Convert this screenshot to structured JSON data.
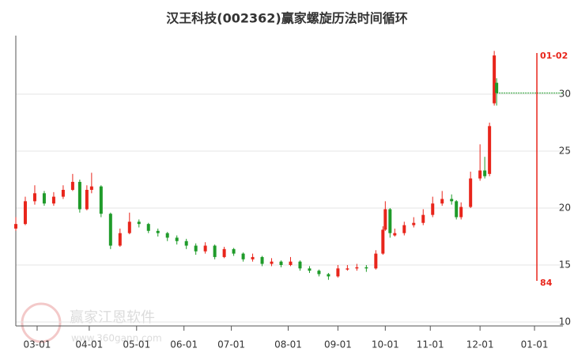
{
  "chart_data": {
    "type": "candlestick",
    "title": "汉王科技(002362)赢家螺旋历法时间循环",
    "watermark": "赢家江恩软件",
    "watermark_url": "www.360gann.com",
    "up_color": "#e8251b",
    "down_color": "#1f9b2a",
    "grid": true,
    "xlim": [
      0,
      231
    ],
    "ylim": [
      9.65,
      34.45
    ],
    "yticks": [
      10,
      15,
      20,
      25,
      30
    ],
    "xticks": [
      {
        "value": 9,
        "label": "03-01"
      },
      {
        "value": 31,
        "label": "04-01"
      },
      {
        "value": 51,
        "label": "05-01"
      },
      {
        "value": 71,
        "label": "06-01"
      },
      {
        "value": 91,
        "label": "07-01"
      },
      {
        "value": 115,
        "label": "08-01"
      },
      {
        "value": 136,
        "label": "09-01"
      },
      {
        "value": 156,
        "label": "10-01"
      },
      {
        "value": 175,
        "label": "11-01"
      },
      {
        "value": 196,
        "label": "12-01"
      },
      {
        "value": 219,
        "label": "01-01"
      }
    ],
    "x": [
      0,
      4,
      8,
      12,
      16,
      20,
      24,
      27,
      30,
      32,
      36,
      40,
      44,
      48,
      52,
      56,
      60,
      64,
      68,
      72,
      76,
      80,
      84,
      88,
      92,
      96,
      100,
      104,
      108,
      112,
      116,
      120,
      124,
      128,
      132,
      136,
      140,
      144,
      148,
      152,
      155,
      156,
      158,
      160,
      164,
      168,
      172,
      176,
      180,
      184,
      186,
      188,
      192,
      196,
      198,
      200,
      202,
      203
    ],
    "open": [
      18.2,
      18.6,
      20.6,
      21.3,
      20.4,
      21.0,
      21.6,
      22.3,
      19.9,
      21.6,
      21.9,
      19.5,
      16.7,
      17.8,
      18.8,
      18.6,
      18.0,
      17.8,
      17.4,
      17.1,
      16.7,
      16.2,
      16.7,
      15.7,
      16.4,
      16.0,
      15.5,
      15.7,
      15.1,
      15.3,
      15.0,
      15.3,
      14.7,
      14.5,
      14.2,
      14.0,
      14.6,
      14.7,
      14.8,
      14.7,
      16.0,
      18.1,
      19.9,
      17.6,
      17.8,
      18.5,
      18.7,
      19.4,
      20.4,
      20.8,
      20.6,
      19.2,
      20.1,
      22.6,
      23.3,
      23.0,
      29.2,
      31.0
    ],
    "close": [
      18.6,
      20.6,
      21.3,
      20.4,
      21.0,
      21.6,
      22.3,
      19.9,
      21.6,
      21.9,
      19.5,
      16.7,
      17.8,
      18.8,
      18.6,
      18.0,
      17.8,
      17.4,
      17.1,
      16.7,
      16.2,
      16.7,
      15.7,
      16.4,
      16.0,
      15.5,
      15.7,
      15.1,
      15.3,
      15.0,
      15.3,
      14.7,
      14.5,
      14.2,
      14.0,
      14.7,
      14.7,
      14.8,
      14.7,
      16.0,
      18.1,
      19.9,
      17.8,
      17.8,
      18.5,
      18.7,
      19.4,
      20.4,
      20.8,
      20.6,
      19.2,
      20.1,
      22.6,
      23.3,
      22.8,
      27.2,
      33.4,
      30.1
    ],
    "high": [
      19.2,
      21.0,
      22.0,
      21.5,
      21.4,
      22.0,
      23.0,
      22.5,
      22.0,
      23.1,
      22.0,
      19.6,
      18.2,
      19.6,
      19.0,
      18.7,
      18.2,
      17.9,
      17.6,
      17.3,
      16.9,
      17.0,
      16.8,
      16.6,
      16.5,
      16.1,
      16.0,
      15.8,
      15.6,
      15.4,
      15.7,
      15.4,
      14.9,
      14.6,
      14.3,
      15.0,
      15.0,
      15.1,
      15.0,
      16.3,
      18.4,
      20.6,
      20.0,
      18.2,
      18.8,
      19.2,
      19.9,
      21.0,
      21.5,
      21.2,
      20.7,
      20.5,
      23.2,
      25.6,
      24.5,
      27.5,
      33.8,
      31.4
    ],
    "low": [
      18.0,
      18.5,
      20.3,
      20.2,
      20.2,
      20.8,
      21.5,
      19.6,
      19.8,
      21.3,
      19.2,
      16.4,
      16.6,
      17.7,
      18.3,
      17.8,
      17.5,
      17.1,
      16.8,
      16.4,
      15.9,
      16.0,
      15.5,
      15.6,
      15.8,
      15.3,
      15.3,
      14.9,
      14.9,
      14.8,
      14.9,
      14.5,
      14.3,
      14.0,
      13.7,
      13.9,
      14.5,
      14.5,
      14.4,
      14.6,
      15.9,
      18.0,
      17.4,
      17.5,
      17.6,
      18.3,
      18.5,
      19.2,
      20.2,
      20.3,
      19.0,
      19.0,
      20.0,
      22.4,
      22.6,
      22.8,
      29.0,
      29.0
    ],
    "marker": {
      "x": 220,
      "label": "01-02",
      "count": 84
    }
  }
}
